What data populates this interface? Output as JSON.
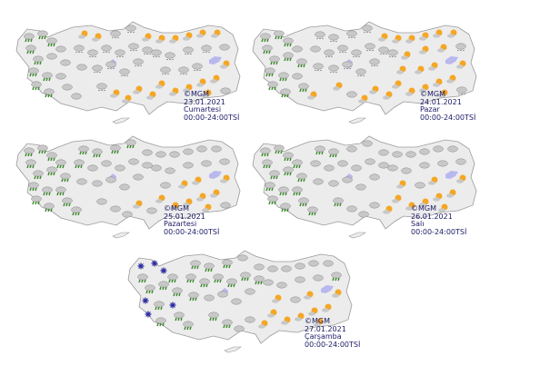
{
  "icon_legend": {
    "S": "sun-cloud",
    "C": "cloudy",
    "R": "rain",
    "N": "snow-cloud",
    "X": "snow"
  },
  "colors": {
    "land": "#ececec",
    "border": "#9a9a9a",
    "lake": "#b8b8ee",
    "sun": "#f5a623",
    "cloud": "#c8c8c8",
    "rain": "#3a8a2a",
    "snow": "#2a2aa0"
  },
  "maps": [
    {
      "copyright": "©MGM",
      "date": "23.01.2021",
      "day": "Cumartesi",
      "period": "00:00-24:00TSİ",
      "icons": "RRRRRCRRRRCCCCCSSNNSSSSSSNNNNNNCNNNNNNNNCNSSSSSSSSSSNNNSC"
    },
    {
      "copyright": "©MGM",
      "date": "24.01.2021",
      "day": "Pazar",
      "period": "00:00-24:00TSİ",
      "icons": "RRRRRRRRRRCRCRSNNNNSSSSSSCNNNNNNNNNNNSSSNSCSSSSSSSSSSSSSN"
    },
    {
      "copyright": "©MGM",
      "date": "25.01.2021",
      "day": "Pazartesi",
      "period": "00:00-24:00TSİ",
      "icons": "RRRRRRRRRRRRRRRRRRRCCCCCCRCCCCCCCCCCCCCCCCCCSCSSSSSSSSCSC"
    },
    {
      "copyright": "©MGM",
      "date": "26.01.2021",
      "day": "Salı",
      "period": "00:00-24:00TSİ",
      "icons": "RRRRRRRRRRRRRRRRRCCCCCCCCCCCCCCCCCCCCCCCCRCCCSSSSSSSSCSS"
    },
    {
      "copyright": "©MGM",
      "date": "27.01.2021",
      "day": "Çarşamba",
      "period": "00:00-24:00TSİ",
      "icons": "XXRXRRXRXRRRXRRRRRCCCCCCCRRRRRRRCCCCCCCCRRRCCSSSSSSSSCSS"
    }
  ]
}
